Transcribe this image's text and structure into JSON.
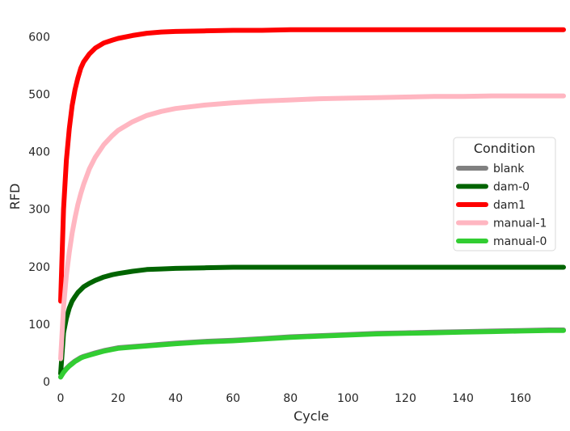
{
  "chart_data": {
    "type": "line",
    "xlabel": "Cycle",
    "ylabel": "RFD",
    "xlim": [
      0,
      175
    ],
    "ylim": [
      0,
      630
    ],
    "x_ticks": [
      0,
      20,
      40,
      60,
      80,
      100,
      120,
      140,
      160
    ],
    "y_ticks": [
      0,
      100,
      200,
      300,
      400,
      500,
      600
    ],
    "grid": false,
    "legend": {
      "title": "Condition",
      "placement": "right"
    },
    "x": [
      0,
      1,
      2,
      3,
      4,
      5,
      6,
      7,
      8,
      10,
      12,
      15,
      18,
      20,
      25,
      30,
      35,
      40,
      50,
      60,
      70,
      80,
      90,
      100,
      110,
      120,
      130,
      140,
      150,
      160,
      170,
      175
    ],
    "series": [
      {
        "name": "blank",
        "color": "#808080",
        "values": [
          8,
          17,
          23,
          28,
          32,
          36,
          39,
          42,
          44,
          47,
          50,
          54,
          57,
          59,
          61,
          63,
          65,
          67,
          70,
          72,
          75,
          78,
          80,
          82,
          84,
          85,
          86,
          87,
          88,
          89,
          90,
          90
        ]
      },
      {
        "name": "dam-0",
        "color": "#006400",
        "values": [
          14,
          85,
          110,
          128,
          140,
          148,
          155,
          160,
          165,
          171,
          176,
          182,
          186,
          188,
          192,
          195,
          196,
          197,
          198,
          199,
          199,
          199,
          199,
          199,
          199,
          199,
          199,
          199,
          199,
          199,
          199,
          199
        ]
      },
      {
        "name": "dam1",
        "color": "#ff0000",
        "values": [
          140,
          300,
          385,
          440,
          480,
          508,
          528,
          545,
          556,
          570,
          580,
          589,
          594,
          597,
          602,
          606,
          608,
          609,
          610,
          611,
          611,
          612,
          612,
          612,
          612,
          612,
          612,
          612,
          612,
          612,
          612,
          612
        ]
      },
      {
        "name": "manual-1",
        "color": "#ffb6c1",
        "values": [
          40,
          130,
          185,
          225,
          258,
          285,
          308,
          327,
          343,
          370,
          390,
          412,
          428,
          437,
          452,
          463,
          470,
          475,
          481,
          485,
          488,
          490,
          492,
          493,
          494,
          495,
          496,
          496,
          497,
          497,
          497,
          497
        ]
      },
      {
        "name": "manual-0",
        "color": "#32cd32",
        "values": [
          8,
          16,
          22,
          27,
          31,
          35,
          38,
          41,
          43,
          46,
          49,
          53,
          56,
          58,
          60,
          62,
          64,
          66,
          69,
          71,
          74,
          77,
          79,
          81,
          83,
          84,
          85,
          86,
          87,
          88,
          89,
          89
        ]
      }
    ]
  }
}
